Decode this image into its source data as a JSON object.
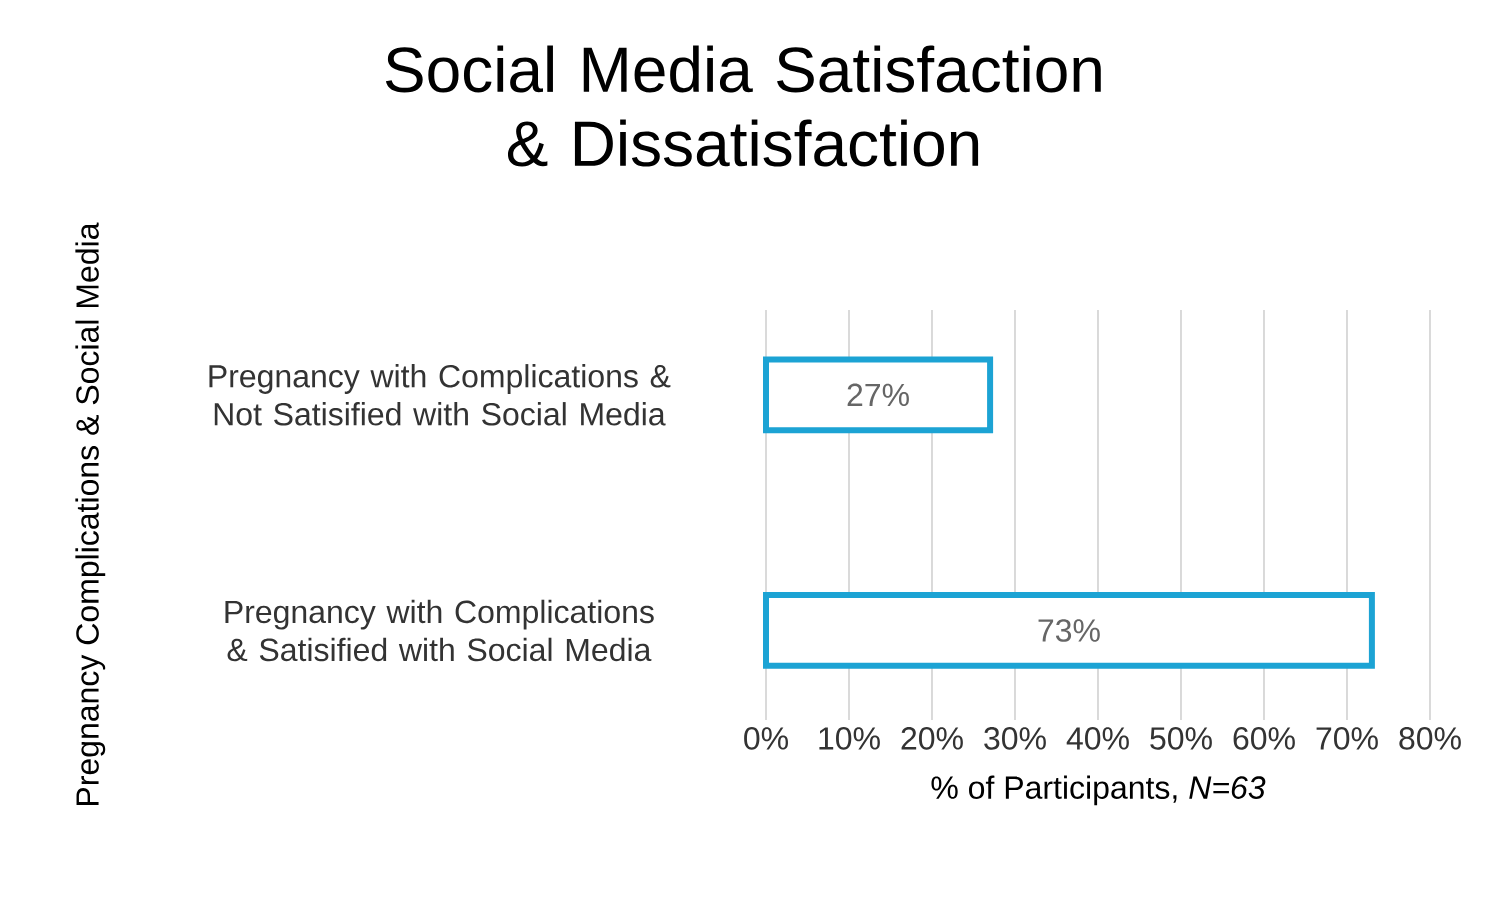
{
  "chart_data": {
    "type": "bar",
    "orientation": "horizontal",
    "title": "Social Media Satisfaction & Dissatisfaction",
    "xlabel": "% of Participants, *N=63*",
    "ylabel": "Pregnancy Complications & Social Media",
    "categories": [
      "Pregnancy with Complications & Not Satisified with Social Media",
      "Pregnancy with Complications & Satisified with Social Media"
    ],
    "values": [
      27,
      73
    ],
    "value_labels": [
      "27%",
      "73%"
    ],
    "color": "#1ca3d4",
    "xlim": [
      0,
      80
    ],
    "xticks": [
      {
        "value": 0,
        "label": "0%"
      },
      {
        "value": 10,
        "label": "10%"
      },
      {
        "value": 20,
        "label": "20%"
      },
      {
        "value": 30,
        "label": "30%"
      },
      {
        "value": 40,
        "label": "40%"
      },
      {
        "value": 50,
        "label": "50%"
      },
      {
        "value": 60,
        "label": "60%"
      },
      {
        "value": 70,
        "label": "70%"
      },
      {
        "value": 80,
        "label": "80%"
      }
    ],
    "grid": "x"
  }
}
